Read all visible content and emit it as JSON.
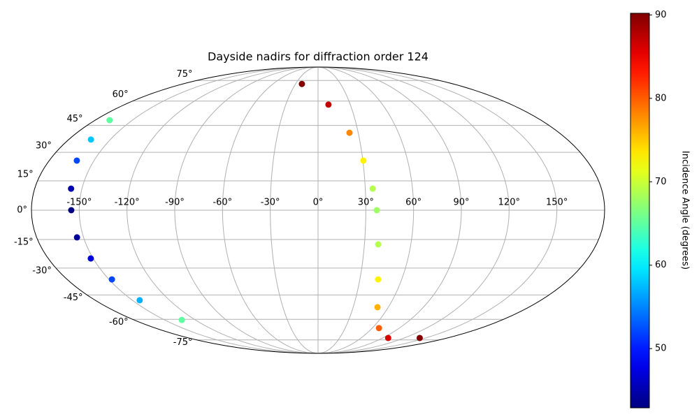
{
  "chart_data": {
    "type": "scatter",
    "projection": "mollweide",
    "title": "Dayside nadirs for diffraction order 124",
    "colorbar_label": "Incidence Angle (degrees)",
    "colormap": "jet",
    "clim": [
      42.9,
      90.2
    ],
    "cticks": [
      50,
      60,
      70,
      80,
      90
    ],
    "xlim": [
      -180,
      180
    ],
    "ylim": [
      -90,
      90
    ],
    "grid": true,
    "xticks": [
      {
        "value": -150,
        "label": "-150°"
      },
      {
        "value": -120,
        "label": "-120°"
      },
      {
        "value": -90,
        "label": "-90°"
      },
      {
        "value": -60,
        "label": "-60°"
      },
      {
        "value": -30,
        "label": "-30°"
      },
      {
        "value": 0,
        "label": "0°"
      },
      {
        "value": 30,
        "label": "30°"
      },
      {
        "value": 60,
        "label": "60°"
      },
      {
        "value": 90,
        "label": "90°"
      },
      {
        "value": 120,
        "label": "120°"
      },
      {
        "value": 150,
        "label": "150°"
      }
    ],
    "yticks": [
      {
        "value": -75,
        "label": "-75°"
      },
      {
        "value": -60,
        "label": "-60°"
      },
      {
        "value": -45,
        "label": "-45°"
      },
      {
        "value": -30,
        "label": "-30°"
      },
      {
        "value": -15,
        "label": "-15°"
      },
      {
        "value": 0,
        "label": "0°"
      },
      {
        "value": 15,
        "label": "15°"
      },
      {
        "value": 30,
        "label": "30°"
      },
      {
        "value": 45,
        "label": "45°"
      },
      {
        "value": 60,
        "label": "60°"
      },
      {
        "value": 75,
        "label": "75°"
      }
    ],
    "series": [
      {
        "x": [
          -21.5,
          9.7,
          23.5,
          30.4,
          34.7,
          36.9,
          38.9,
          43.1,
          50.8,
          67.5,
          97.6,
          141.5
        ],
        "y": [
          72.2,
          57.7,
          40.8,
          25.6,
          11.0,
          0,
          -17.5,
          -36.2,
          -52.3,
          -66.0,
          -73.4,
          -73.4
        ],
        "values": [
          90,
          87,
          78,
          73,
          69,
          68,
          69,
          73,
          76,
          80,
          86,
          90
        ]
      },
      {
        "x": [
          -168.4,
          -164.0,
          -161.5,
          -156.9,
          -155.0,
          -154.2,
          -151.6,
          -147.9,
          -144.1,
          -133.2
        ],
        "y": [
          48.1,
          37.0,
          25.6,
          11.0,
          0,
          -13.9,
          -24.9,
          -36.2,
          -48.1,
          -60.4
        ],
        "values": [
          65,
          58,
          52,
          45,
          43,
          44,
          47,
          52,
          57,
          65
        ]
      }
    ]
  }
}
